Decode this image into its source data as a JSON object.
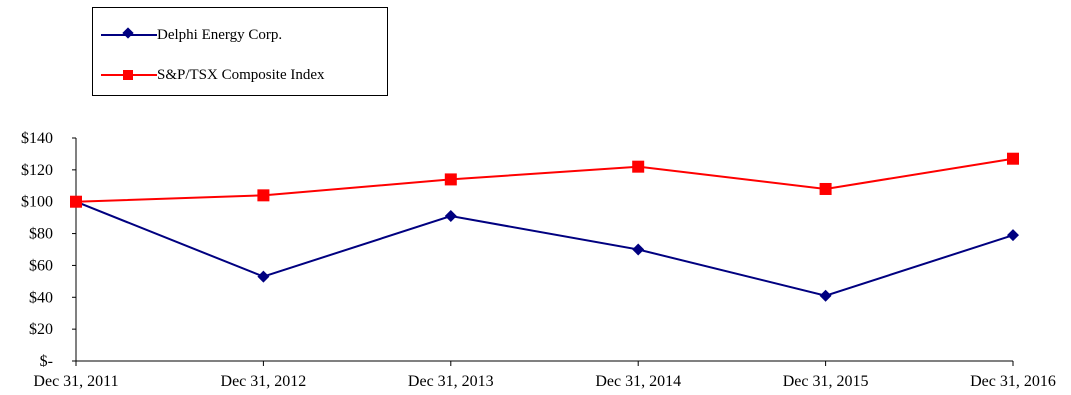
{
  "chart_data": {
    "type": "line",
    "categories": [
      "Dec 31, 2011",
      "Dec 31, 2012",
      "Dec 31, 2013",
      "Dec 31, 2014",
      "Dec 31, 2015",
      "Dec 31, 2016"
    ],
    "series": [
      {
        "name": "Delphi Energy Corp.",
        "values": [
          100,
          53,
          91,
          70,
          41,
          79
        ],
        "color": "#000080",
        "marker": "diamond"
      },
      {
        "name": "S&P/TSX Composite Index",
        "values": [
          100,
          104,
          114,
          122,
          108,
          127
        ],
        "color": "#ff0000",
        "marker": "square"
      }
    ],
    "y_ticks": [
      0,
      20,
      40,
      60,
      80,
      100,
      120,
      140
    ],
    "y_tick_labels": [
      "$-",
      "$20",
      "$40",
      "$60",
      "$80",
      "$100",
      "$120",
      "$140"
    ],
    "ylim": [
      0,
      140
    ],
    "grid": false,
    "legend_position": "top-left"
  }
}
